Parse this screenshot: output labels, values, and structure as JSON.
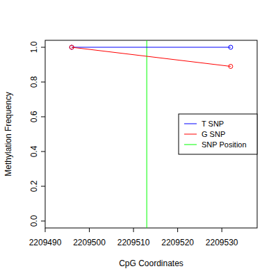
{
  "chart_data": {
    "type": "line",
    "x_label": "CpG Coordinates",
    "y_label": "Methylation Frequency",
    "x": [
      2209496,
      2209532
    ],
    "series": [
      {
        "name": "T SNP",
        "color": "#0000ff",
        "marker": "circle",
        "values": [
          1.0,
          1.0
        ]
      },
      {
        "name": "G SNP",
        "color": "#ff0000",
        "marker": "circle",
        "values": [
          1.0,
          0.89
        ]
      }
    ],
    "vlines": [
      {
        "name": "SNP Position",
        "color": "#00ff00",
        "x": 2209513
      }
    ],
    "xlim": [
      2209490,
      2209538
    ],
    "xticks": [
      2209490,
      2209500,
      2209510,
      2209520,
      2209530
    ],
    "ylim": [
      -0.04,
      1.04
    ],
    "yticks": [
      {
        "value": 0,
        "label": "0.0"
      },
      {
        "value": 0.2,
        "label": "0.2"
      },
      {
        "value": 0.4,
        "label": "0.4"
      },
      {
        "value": 0.6,
        "label": "0.6"
      },
      {
        "value": 0.8,
        "label": "0.8"
      },
      {
        "value": 1,
        "label": "1.0"
      }
    ],
    "legend": "right",
    "grid": false
  }
}
